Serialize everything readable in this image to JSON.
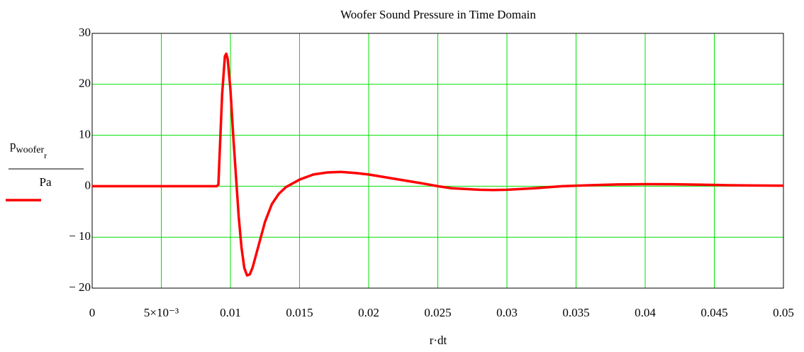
{
  "chart_data": {
    "type": "line",
    "title": "Woofer Sound Pressure in Time Domain",
    "x_label": "r·dt",
    "y_label": {
      "symbol": "p",
      "subscript": "woofer",
      "sub_subscript": "r",
      "denominator": "Pa"
    },
    "x": [
      0,
      0.009,
      0.00913,
      0.0092,
      0.0094,
      0.0096,
      0.0097,
      0.0098,
      0.01,
      0.0102,
      0.0104,
      0.0106,
      0.0108,
      0.011,
      0.0112,
      0.0114,
      0.0116,
      0.012,
      0.0125,
      0.013,
      0.0135,
      0.014,
      0.015,
      0.016,
      0.017,
      0.018,
      0.019,
      0.02,
      0.022,
      0.024,
      0.025,
      0.026,
      0.028,
      0.029,
      0.03,
      0.032,
      0.034,
      0.036,
      0.038,
      0.04,
      0.042,
      0.044,
      0.046,
      0.048,
      0.05
    ],
    "series": [
      {
        "color": "#ff0000",
        "values": [
          0,
          0,
          0.3,
          5,
          18,
          25.5,
          26,
          25,
          19,
          10,
          2,
          -6,
          -12,
          -16,
          -17.5,
          -17.3,
          -16,
          -12,
          -7,
          -3.5,
          -1.5,
          -0.2,
          1.3,
          2.3,
          2.7,
          2.8,
          2.6,
          2.3,
          1.4,
          0.5,
          0,
          -0.4,
          -0.7,
          -0.75,
          -0.7,
          -0.4,
          0,
          0.2,
          0.35,
          0.4,
          0.38,
          0.3,
          0.2,
          0.15,
          0.1
        ]
      }
    ],
    "xlim": [
      0,
      0.05
    ],
    "xticks": [
      0,
      {
        "value": 0.005,
        "label": "5×10⁻³"
      },
      0.01,
      0.015,
      0.02,
      0.025,
      0.03,
      0.035,
      0.04,
      0.045,
      0.05
    ],
    "ylim": [
      -20,
      30
    ],
    "yticks": [
      {
        "value": -20,
        "label": "− 20"
      },
      {
        "value": -10,
        "label": "− 10"
      },
      0,
      10,
      20,
      30
    ],
    "grid": true,
    "grid_color": "#00e000"
  }
}
